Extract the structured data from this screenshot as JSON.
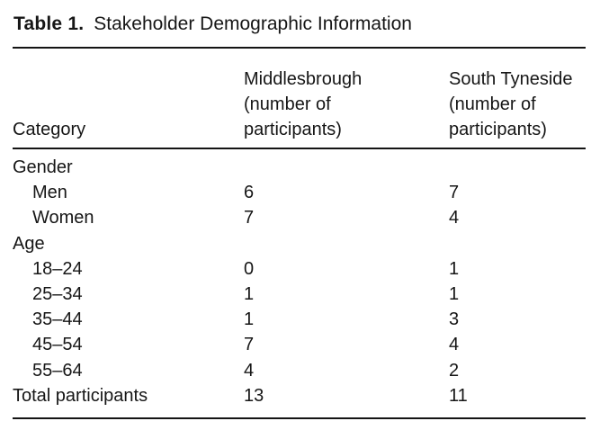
{
  "caption": {
    "label": "Table 1.",
    "title": "Stakeholder Demographic Information"
  },
  "header": {
    "category": "Category",
    "col1": "Middlesbrough\n(number of\nparticipants)",
    "col2": "South Tyneside\n(number of\nparticipants)"
  },
  "rows": [
    {
      "label": "Gender",
      "middlesbrough": "",
      "south_tyneside": ""
    },
    {
      "label": "Men",
      "middlesbrough": "6",
      "south_tyneside": "7"
    },
    {
      "label": "Women",
      "middlesbrough": "7",
      "south_tyneside": "4"
    },
    {
      "label": "Age",
      "middlesbrough": "",
      "south_tyneside": ""
    },
    {
      "label": "18–24",
      "middlesbrough": "0",
      "south_tyneside": "1"
    },
    {
      "label": "25–34",
      "middlesbrough": "1",
      "south_tyneside": "1"
    },
    {
      "label": "35–44",
      "middlesbrough": "1",
      "south_tyneside": "3"
    },
    {
      "label": "45–54",
      "middlesbrough": "7",
      "south_tyneside": "4"
    },
    {
      "label": "55–64",
      "middlesbrough": "4",
      "south_tyneside": "2"
    },
    {
      "label": "Total participants",
      "middlesbrough": "13",
      "south_tyneside": "11"
    }
  ],
  "text_color": "#161616",
  "background_color": "#ffffff"
}
